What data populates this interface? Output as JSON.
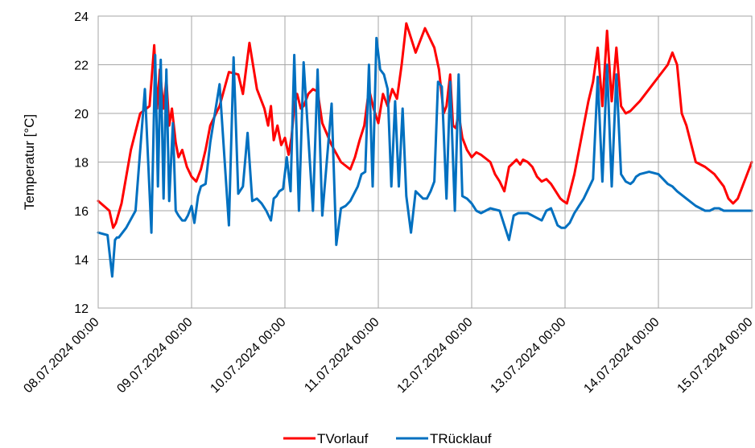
{
  "chart_data": {
    "type": "line",
    "ylabel": "Temperatur [°C]",
    "ylim": [
      12,
      24
    ],
    "yticks": [
      "12",
      "14",
      "16",
      "18",
      "20",
      "22",
      "24"
    ],
    "xlim": [
      0,
      7
    ],
    "xticks": [
      "08.07.2024 00:00",
      "09.07.2024 00:00",
      "10.07.2024 00:00",
      "11.07.2024 00:00",
      "12.07.2024 00:00",
      "13.07.2024 00:00",
      "14.07.2024 00:00",
      "15.07.2024 00:00"
    ],
    "grid": true,
    "legend": "bottom",
    "series": [
      {
        "name": "TVorlauf",
        "color": "#ff0000",
        "x": [
          0,
          0.12,
          0.16,
          0.19,
          0.25,
          0.35,
          0.45,
          0.55,
          0.6,
          0.63,
          0.66,
          0.7,
          0.73,
          0.76,
          0.79,
          0.83,
          0.86,
          0.9,
          0.95,
          1.0,
          1.05,
          1.1,
          1.15,
          1.2,
          1.3,
          1.4,
          1.5,
          1.55,
          1.62,
          1.7,
          1.78,
          1.82,
          1.85,
          1.88,
          1.92,
          1.96,
          2.0,
          2.04,
          2.07,
          2.1,
          2.13,
          2.17,
          2.2,
          2.25,
          2.3,
          2.35,
          2.4,
          2.5,
          2.6,
          2.7,
          2.75,
          2.8,
          2.85,
          2.9,
          2.95,
          3.0,
          3.05,
          3.1,
          3.15,
          3.2,
          3.25,
          3.3,
          3.4,
          3.5,
          3.6,
          3.65,
          3.7,
          3.73,
          3.77,
          3.8,
          3.83,
          3.86,
          3.9,
          3.95,
          4.0,
          4.05,
          4.1,
          4.2,
          4.25,
          4.3,
          4.35,
          4.4,
          4.48,
          4.52,
          4.55,
          4.6,
          4.65,
          4.7,
          4.75,
          4.8,
          4.85,
          4.9,
          4.95,
          4.98,
          5.02,
          5.06,
          5.1,
          5.15,
          5.2,
          5.25,
          5.3,
          5.35,
          5.4,
          5.45,
          5.5,
          5.55,
          5.6,
          5.65,
          5.7,
          5.75,
          5.8,
          5.9,
          6.0,
          6.1,
          6.15,
          6.2,
          6.25,
          6.3,
          6.4,
          6.5,
          6.6,
          6.7,
          6.75,
          6.8,
          6.85,
          6.9,
          6.95,
          7.0
        ],
        "values": [
          16.4,
          16.0,
          15.3,
          15.5,
          16.3,
          18.5,
          20.0,
          20.3,
          22.8,
          20.2,
          21.8,
          20.2,
          21.4,
          19.5,
          20.2,
          18.8,
          18.2,
          18.5,
          17.8,
          17.4,
          17.2,
          17.7,
          18.5,
          19.5,
          20.3,
          21.7,
          21.6,
          20.8,
          22.9,
          21.0,
          20.2,
          19.5,
          20.3,
          18.9,
          19.5,
          18.7,
          19.0,
          18.3,
          19.0,
          20.3,
          20.8,
          20.2,
          20.3,
          20.8,
          21.0,
          20.9,
          19.6,
          18.7,
          18.0,
          17.7,
          18.2,
          18.9,
          19.5,
          21.0,
          20.2,
          19.6,
          20.8,
          20.3,
          21.0,
          20.6,
          22.0,
          23.7,
          22.5,
          23.5,
          22.7,
          21.8,
          20.0,
          20.3,
          21.6,
          19.5,
          19.4,
          20.0,
          19.0,
          18.5,
          18.2,
          18.4,
          18.3,
          18.0,
          17.5,
          17.2,
          16.8,
          17.8,
          18.1,
          17.9,
          18.1,
          18.0,
          17.8,
          17.4,
          17.2,
          17.3,
          17.1,
          16.8,
          16.5,
          16.4,
          16.3,
          16.9,
          17.5,
          18.5,
          19.5,
          20.5,
          21.3,
          22.7,
          20.3,
          23.4,
          20.5,
          22.7,
          20.3,
          20.0,
          20.1,
          20.3,
          20.5,
          21.0,
          21.5,
          22.0,
          22.5,
          22.0,
          20.0,
          19.5,
          18.0,
          17.8,
          17.5,
          17.0,
          16.5,
          16.3,
          16.5,
          17.0,
          17.5,
          18.0
        ]
      },
      {
        "name": "TRücklauf",
        "color": "#0070c0",
        "x": [
          0,
          0.1,
          0.15,
          0.18,
          0.2,
          0.22,
          0.3,
          0.4,
          0.5,
          0.57,
          0.61,
          0.64,
          0.67,
          0.7,
          0.73,
          0.76,
          0.8,
          0.83,
          0.86,
          0.9,
          0.93,
          0.96,
          1.0,
          1.03,
          1.07,
          1.1,
          1.15,
          1.2,
          1.3,
          1.4,
          1.45,
          1.5,
          1.55,
          1.6,
          1.65,
          1.7,
          1.75,
          1.8,
          1.85,
          1.88,
          1.91,
          1.94,
          1.98,
          2.02,
          2.06,
          2.1,
          2.15,
          2.2,
          2.3,
          2.35,
          2.4,
          2.5,
          2.55,
          2.6,
          2.65,
          2.7,
          2.78,
          2.82,
          2.86,
          2.9,
          2.94,
          2.98,
          3.02,
          3.06,
          3.1,
          3.14,
          3.18,
          3.22,
          3.26,
          3.3,
          3.35,
          3.4,
          3.48,
          3.52,
          3.56,
          3.6,
          3.64,
          3.68,
          3.73,
          3.77,
          3.82,
          3.86,
          3.9,
          3.95,
          4.0,
          4.05,
          4.1,
          4.2,
          4.3,
          4.4,
          4.45,
          4.5,
          4.55,
          4.6,
          4.65,
          4.7,
          4.75,
          4.8,
          4.85,
          4.88,
          4.92,
          4.96,
          5.0,
          5.05,
          5.1,
          5.2,
          5.25,
          5.3,
          5.35,
          5.4,
          5.45,
          5.5,
          5.55,
          5.6,
          5.65,
          5.7,
          5.73,
          5.76,
          5.8,
          5.9,
          6.0,
          6.1,
          6.15,
          6.2,
          6.3,
          6.4,
          6.5,
          6.55,
          6.6,
          6.65,
          6.7,
          6.75,
          6.8,
          6.85,
          6.9,
          6.95,
          7.0
        ],
        "values": [
          15.1,
          15.0,
          13.3,
          14.8,
          14.9,
          14.9,
          15.3,
          16.0,
          21.0,
          15.1,
          22.4,
          17.0,
          22.2,
          16.5,
          21.8,
          16.4,
          19.6,
          16.0,
          15.8,
          15.6,
          15.6,
          15.8,
          16.2,
          15.5,
          16.6,
          17.0,
          17.1,
          18.8,
          21.2,
          15.4,
          22.3,
          16.7,
          17.0,
          19.2,
          16.4,
          16.5,
          16.3,
          16.0,
          15.6,
          16.5,
          16.6,
          16.8,
          16.9,
          18.2,
          16.8,
          22.4,
          16.0,
          22.1,
          16.0,
          21.8,
          15.8,
          20.4,
          14.6,
          16.1,
          16.2,
          16.4,
          17.0,
          17.5,
          17.6,
          22.0,
          17.0,
          23.1,
          21.8,
          21.6,
          21.0,
          17.0,
          20.5,
          17.0,
          20.2,
          16.6,
          15.1,
          16.8,
          16.5,
          16.5,
          16.8,
          17.2,
          21.3,
          21.1,
          16.5,
          21.3,
          16.0,
          21.6,
          16.6,
          16.5,
          16.3,
          16.0,
          15.9,
          16.1,
          16.0,
          14.8,
          15.8,
          15.9,
          15.9,
          15.9,
          15.8,
          15.7,
          15.6,
          16.0,
          16.1,
          15.8,
          15.4,
          15.3,
          15.3,
          15.5,
          15.9,
          16.5,
          16.9,
          17.3,
          21.5,
          17.2,
          22.0,
          17.0,
          21.6,
          17.5,
          17.2,
          17.1,
          17.2,
          17.4,
          17.5,
          17.6,
          17.5,
          17.1,
          17.0,
          16.8,
          16.5,
          16.2,
          16.0,
          16.0,
          16.1,
          16.1,
          16.0,
          16.0,
          16.0,
          16.0,
          16.0,
          16.0,
          16.0
        ]
      }
    ]
  }
}
